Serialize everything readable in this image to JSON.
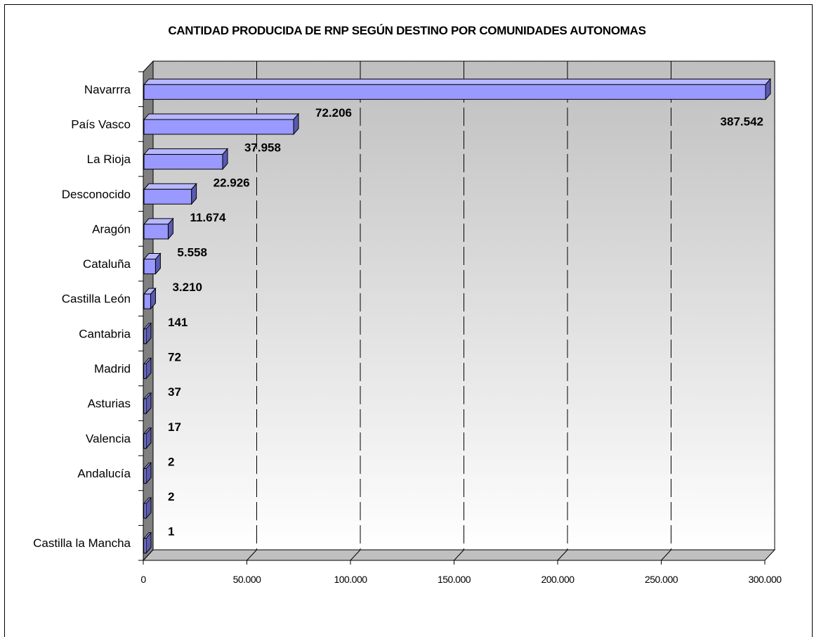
{
  "chart_data": {
    "type": "bar",
    "orientation": "horizontal",
    "title": "CANTIDAD PRODUCIDA DE RNP SEGÚN DESTINO POR COMUNIDADES AUTONOMAS",
    "categories": [
      "Navarrra",
      "País Vasco",
      "La Rioja",
      "Desconocido",
      "Aragón",
      "Cataluña",
      "Castilla León",
      "Cantabria",
      "Madrid",
      "Asturias",
      "Valencia",
      "Andalucía",
      "",
      "Castilla la Mancha"
    ],
    "values": [
      387542,
      72206,
      37958,
      22926,
      11674,
      5558,
      3210,
      141,
      72,
      37,
      17,
      2,
      2,
      1
    ],
    "data_labels": [
      "387.542",
      "72.206",
      "37.958",
      "22.926",
      "11.674",
      "5.558",
      "3.210",
      "141",
      "72",
      "37",
      "17",
      "2",
      "2",
      "1"
    ],
    "xlim": [
      0,
      300000
    ],
    "x_ticks": [
      0,
      50000,
      100000,
      150000,
      200000,
      250000,
      300000
    ],
    "x_tick_labels": [
      "0",
      "50.000",
      "100.000",
      "150.000",
      "200.000",
      "250.000",
      "300.000"
    ],
    "grid": "vertical dashed",
    "legend": "none",
    "colors": {
      "bar_face": "#9999ff",
      "bar_top": "#b7b7ff",
      "bar_side": "#5a5ab0",
      "wall_left": "#808080",
      "floor": "#c0c0c0",
      "background_top": "#c0c0c0",
      "background_bottom": "#ffffff"
    }
  }
}
